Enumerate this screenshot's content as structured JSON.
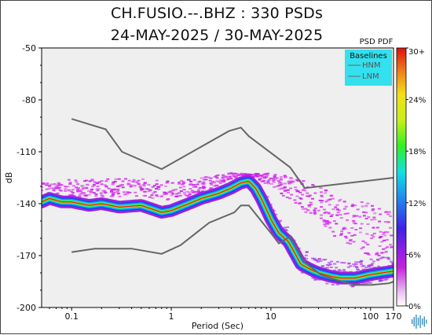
{
  "title": "CH.FUSIO.--.BHZ : 330 PSDs",
  "subtitle": "24-MAY-2025 / 30-MAY-2025",
  "chart_data": {
    "type": "heatmap",
    "xlabel": "Period (Sec)",
    "ylabel": "dB",
    "x_scale": "log",
    "xlim": [
      0.05,
      170
    ],
    "ylim": [
      -200,
      -50
    ],
    "x_ticks": [
      {
        "value": 0.1,
        "label": "0.1"
      },
      {
        "value": 1,
        "label": "1"
      },
      {
        "value": 10,
        "label": "10"
      },
      {
        "value": 100,
        "label": "100"
      },
      {
        "value": 170,
        "label": "170"
      }
    ],
    "y_ticks": [
      {
        "value": -50,
        "label": "-50"
      },
      {
        "value": -80,
        "label": "-80"
      },
      {
        "value": -110,
        "label": "-110"
      },
      {
        "value": -140,
        "label": "-140"
      },
      {
        "value": -170,
        "label": "-170"
      },
      {
        "value": -200,
        "label": "-200"
      }
    ],
    "grid": false,
    "colorbar": {
      "title": "PSD PDF",
      "min": 0,
      "max": 30,
      "tick_labels": [
        "30+",
        "24%",
        "18%",
        "12%",
        "6%",
        "0%"
      ],
      "tick_values": [
        30,
        24,
        18,
        12,
        6,
        0
      ]
    },
    "legend": {
      "title": "Baselines",
      "placement": "top-right",
      "background": "#33e0ee",
      "entries": [
        "HNM",
        "LNM"
      ]
    },
    "baselines": [
      {
        "name": "HNM",
        "color": "#666666",
        "x": [
          0.1,
          0.22,
          0.32,
          0.8,
          3.8,
          5,
          6,
          15.6,
          21.9,
          170
        ],
        "y": [
          -91,
          -97,
          -110,
          -120,
          -98,
          -96,
          -101,
          -119,
          -131,
          -125
        ]
      },
      {
        "name": "LNM",
        "color": "#666666",
        "x": [
          0.1,
          0.17,
          0.4,
          0.8,
          1.24,
          2.4,
          4.3,
          5,
          6,
          10,
          12,
          15.6,
          21.9,
          31.6,
          45,
          70,
          101,
          154,
          170
        ],
        "y": [
          -168,
          -166,
          -166,
          -169,
          -164,
          -151,
          -145,
          -141,
          -141,
          -157,
          -163,
          -159,
          -174,
          -181,
          -184,
          -187,
          -187,
          -186,
          -185
        ]
      }
    ],
    "mode_curve": {
      "x": [
        0.05,
        0.06,
        0.08,
        0.1,
        0.15,
        0.2,
        0.3,
        0.5,
        0.8,
        1.0,
        1.5,
        2.0,
        3.0,
        4.0,
        5.0,
        6.0,
        7.0,
        8.0,
        10,
        12,
        15,
        20,
        25,
        30,
        40,
        50,
        70,
        100,
        130,
        170
      ],
      "y": [
        -139,
        -137,
        -139,
        -139,
        -141,
        -140,
        -142,
        -141,
        -145,
        -144,
        -140,
        -137,
        -134,
        -131,
        -128,
        -127,
        -131,
        -137,
        -149,
        -157,
        -162,
        -175,
        -178,
        -180,
        -182,
        -183,
        -183,
        -181,
        -180,
        -179
      ]
    },
    "bands": [
      {
        "label": "upper-scatter",
        "color": "#e61ee6",
        "x": [
          0.05,
          0.1,
          0.5,
          1,
          2,
          4,
          6,
          10,
          20,
          50,
          100,
          170
        ],
        "y_low": [
          -137,
          -136,
          -136,
          -139,
          -134,
          -126,
          -123,
          -130,
          -143,
          -162,
          -170,
          -172
        ],
        "y_high": [
          -128,
          -126,
          -125,
          -127,
          -125,
          -122,
          -123,
          -122,
          -125,
          -136,
          -140,
          -140
        ]
      }
    ]
  },
  "watermark_logo": "IRIS"
}
